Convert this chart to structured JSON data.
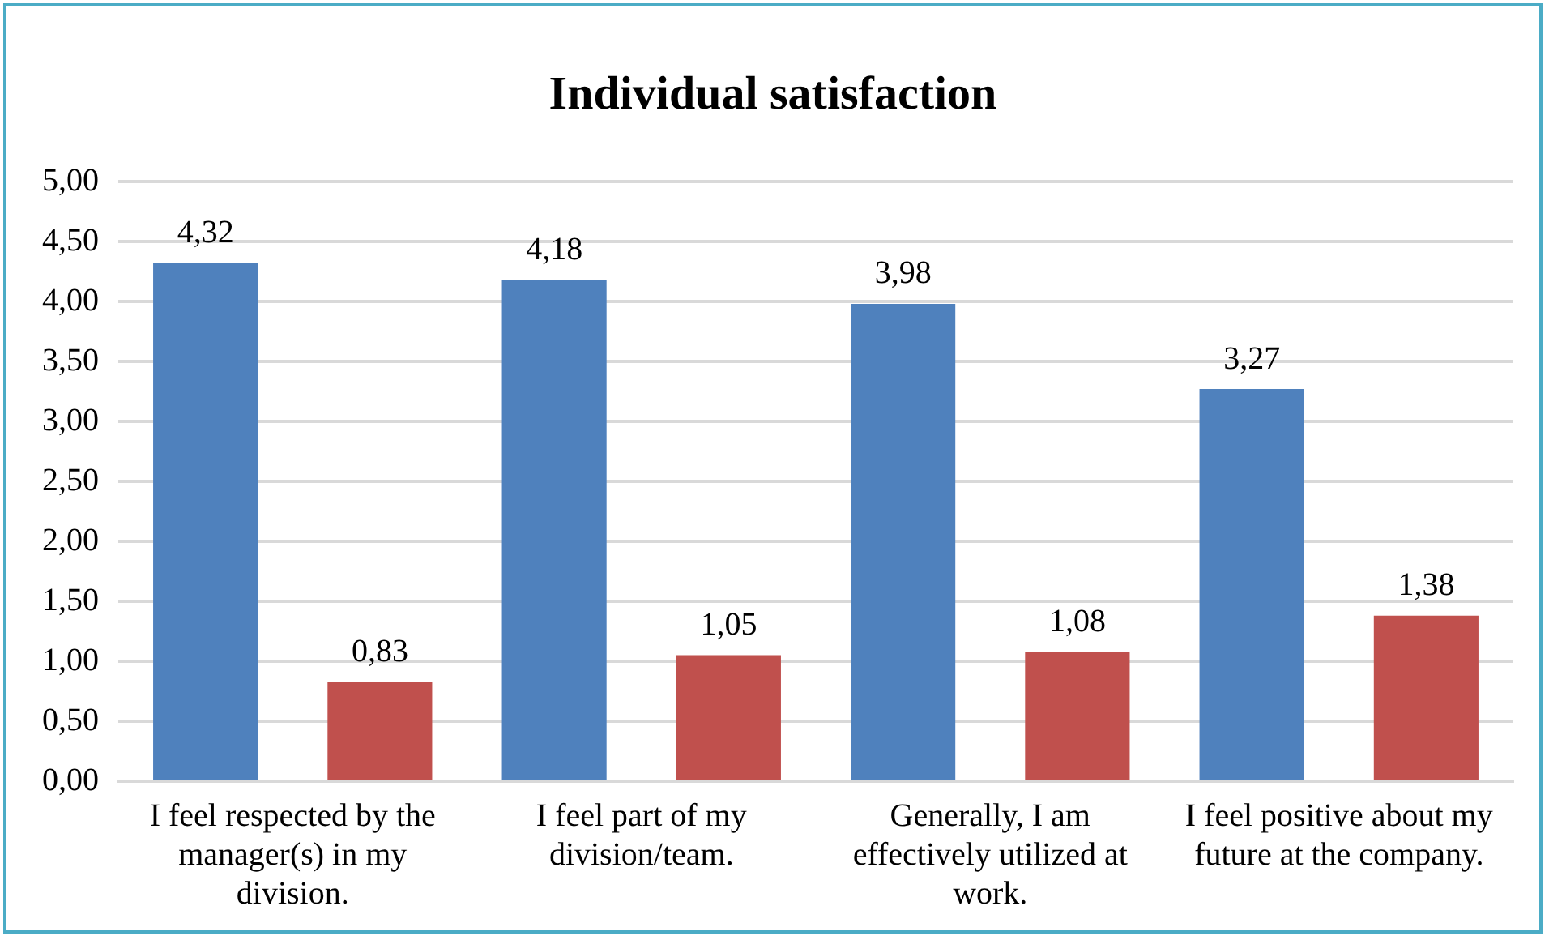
{
  "chart_data": {
    "type": "bar",
    "title": "Individual satisfaction",
    "categories": [
      "I feel respected by the manager(s) in my division.",
      "I feel part of my division/team.",
      "Generally, I am effectively utilized at work.",
      "I feel positive about my future at the company."
    ],
    "series": [
      {
        "color": "#4f81bd",
        "values": [
          4.32,
          4.18,
          3.98,
          3.27
        ],
        "value_labels": [
          "4,32",
          "4,18",
          "3,98",
          "3,27"
        ]
      },
      {
        "color": "#c0504d",
        "values": [
          0.83,
          1.05,
          1.08,
          1.38
        ],
        "value_labels": [
          "0,83",
          "1,05",
          "1,08",
          "1,38"
        ]
      }
    ],
    "ylim": [
      0,
      5
    ],
    "yticks": [
      {
        "value": 0,
        "label": "0,00"
      },
      {
        "value": 0.5,
        "label": "0,50"
      },
      {
        "value": 1,
        "label": "1,00"
      },
      {
        "value": 1.5,
        "label": "1,50"
      },
      {
        "value": 2,
        "label": "2,00"
      },
      {
        "value": 2.5,
        "label": "2,50"
      },
      {
        "value": 3,
        "label": "3,00"
      },
      {
        "value": 3.5,
        "label": "3,50"
      },
      {
        "value": 4,
        "label": "4,00"
      },
      {
        "value": 4.5,
        "label": "4,50"
      },
      {
        "value": 5,
        "label": "5,00"
      }
    ],
    "grid": "y",
    "legend": false
  }
}
